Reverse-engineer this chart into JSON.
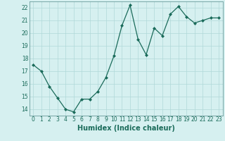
{
  "x": [
    0,
    1,
    2,
    3,
    4,
    5,
    6,
    7,
    8,
    9,
    10,
    11,
    12,
    13,
    14,
    15,
    16,
    17,
    18,
    19,
    20,
    21,
    22,
    23
  ],
  "y": [
    17.5,
    17.0,
    15.8,
    14.9,
    14.0,
    13.8,
    14.8,
    14.8,
    15.4,
    16.5,
    18.2,
    20.6,
    22.2,
    19.5,
    18.3,
    20.4,
    19.8,
    21.5,
    22.1,
    21.3,
    20.8,
    21.0,
    21.2,
    21.2
  ],
  "line_color": "#1a6b5a",
  "marker": "D",
  "marker_size": 2,
  "bg_color": "#d6f0f0",
  "grid_color": "#b0d8d8",
  "xlabel": "Humidex (Indice chaleur)",
  "ylim": [
    13.5,
    22.5
  ],
  "xlim": [
    -0.5,
    23.5
  ],
  "yticks": [
    14,
    15,
    16,
    17,
    18,
    19,
    20,
    21,
    22
  ],
  "xticks": [
    0,
    1,
    2,
    3,
    4,
    5,
    6,
    7,
    8,
    9,
    10,
    11,
    12,
    13,
    14,
    15,
    16,
    17,
    18,
    19,
    20,
    21,
    22,
    23
  ],
  "tick_fontsize": 5.5,
  "xlabel_fontsize": 7,
  "axis_color": "#1a6b5a",
  "spine_color": "#6a9a9a"
}
